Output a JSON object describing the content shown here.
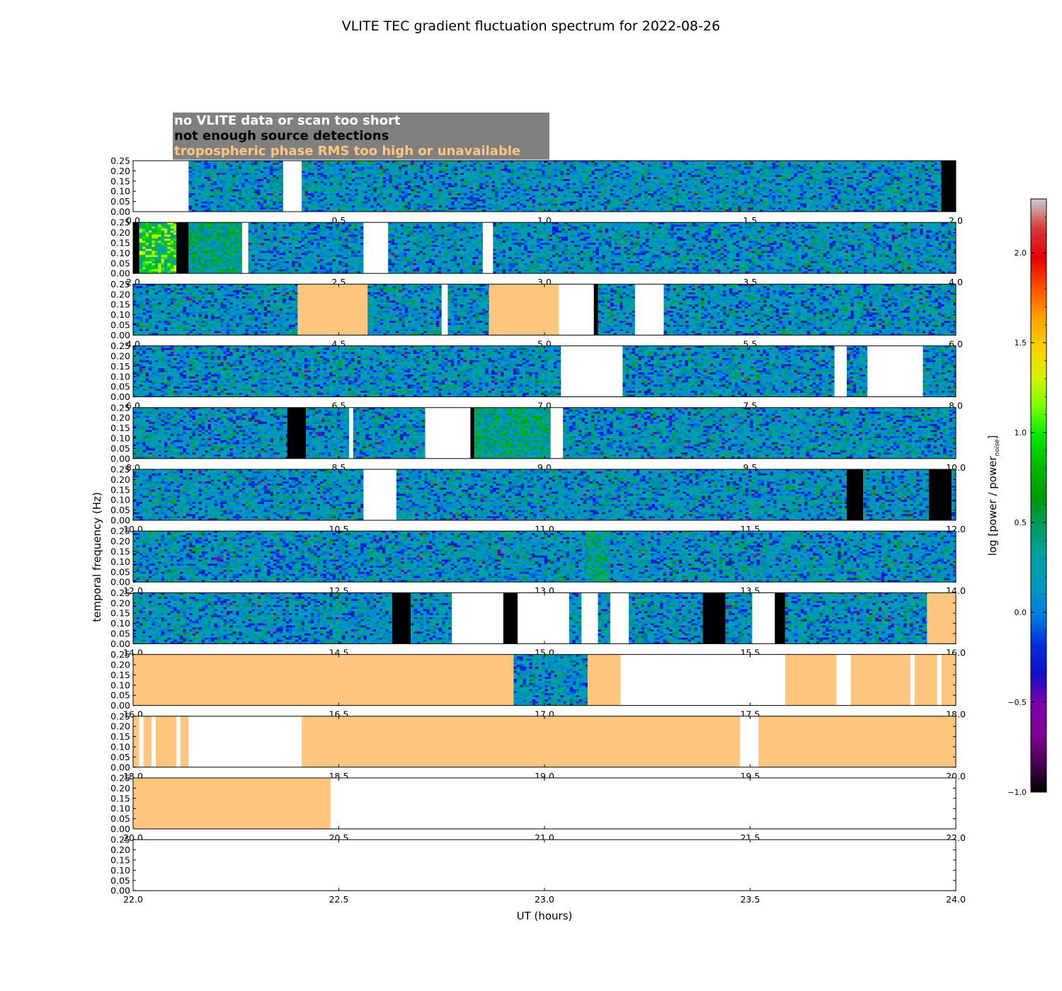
{
  "chart_data": {
    "type": "heatmap",
    "title": "VLITE TEC gradient fluctuation spectrum for 2022-08-26",
    "xlabel": "UT (hours)",
    "ylabel": "temporal frequency (Hz)",
    "colorbar_label": "log [power / power",
    "colorbar_label_sub": "noise",
    "colorbar_label_end": "]",
    "colorbar_range": [
      -1.0,
      2.3
    ],
    "colorbar_ticks": [
      "−1.0",
      "−0.5",
      "0.0",
      "0.5",
      "1.0",
      "1.5",
      "2.0"
    ],
    "colorbar_tick_values": [
      -1.0,
      -0.5,
      0.0,
      0.5,
      1.0,
      1.5,
      2.0
    ],
    "ylim": [
      0.0,
      0.25
    ],
    "y_ticks": [
      "0.00",
      "0.05",
      "0.10",
      "0.15",
      "0.20",
      "0.25"
    ],
    "y_tick_values": [
      0.0,
      0.05,
      0.1,
      0.15,
      0.2,
      0.25
    ],
    "legend": [
      {
        "label": "no VLITE data or scan too short",
        "text_color": "#ffffff",
        "category": "nodata"
      },
      {
        "label": "not enough source detections",
        "text_color": "#000000",
        "category": "nodet"
      },
      {
        "label": "tropospheric phase RMS too high or unavailable",
        "text_color": "#ffc67f",
        "category": "trop"
      }
    ],
    "legend_background": "#808080",
    "category_colors": {
      "nodata": "#ffffff",
      "nodet": "#000000",
      "trop": "#ffc67f"
    },
    "panels": [
      {
        "xlim": [
          0,
          2
        ],
        "x_ticks": [
          "0.0",
          "0.5",
          "1.0",
          "1.5",
          "2.0"
        ],
        "x_tick_values": [
          0,
          0.5,
          1.0,
          1.5,
          2.0
        ],
        "segments": [
          [
            0.0,
            0.135,
            "nodata"
          ],
          [
            0.135,
            0.365,
            "data"
          ],
          [
            0.365,
            0.41,
            "nodata"
          ],
          [
            0.41,
            1.965,
            "data"
          ],
          [
            1.965,
            2.0,
            "nodet"
          ]
        ]
      },
      {
        "xlim": [
          2,
          4
        ],
        "x_ticks": [
          "2.0",
          "2.5",
          "3.0",
          "3.5",
          "4.0"
        ],
        "x_tick_values": [
          2.0,
          2.5,
          3.0,
          3.5,
          4.0
        ],
        "segments": [
          [
            2.0,
            2.015,
            "nodet"
          ],
          [
            2.015,
            2.105,
            "data",
            "hot"
          ],
          [
            2.105,
            2.135,
            "nodet"
          ],
          [
            2.135,
            2.265,
            "data",
            "warm"
          ],
          [
            2.265,
            2.28,
            "nodata"
          ],
          [
            2.28,
            2.56,
            "data"
          ],
          [
            2.56,
            2.62,
            "nodata"
          ],
          [
            2.62,
            2.85,
            "data"
          ],
          [
            2.85,
            2.875,
            "nodata"
          ],
          [
            2.875,
            4.0,
            "data"
          ]
        ]
      },
      {
        "xlim": [
          4,
          6
        ],
        "x_ticks": [
          "4.0",
          "4.5",
          "5.0",
          "5.5",
          "6.0"
        ],
        "x_tick_values": [
          4.0,
          4.5,
          5.0,
          5.5,
          6.0
        ],
        "segments": [
          [
            4.0,
            4.4,
            "data"
          ],
          [
            4.4,
            4.57,
            "trop"
          ],
          [
            4.57,
            4.75,
            "data"
          ],
          [
            4.75,
            4.765,
            "nodata"
          ],
          [
            4.765,
            4.865,
            "data"
          ],
          [
            4.865,
            5.035,
            "trop"
          ],
          [
            5.035,
            5.12,
            "nodata"
          ],
          [
            5.12,
            5.13,
            "nodet"
          ],
          [
            5.13,
            5.22,
            "data"
          ],
          [
            5.22,
            5.29,
            "nodata"
          ],
          [
            5.29,
            6.0,
            "data"
          ]
        ]
      },
      {
        "xlim": [
          6,
          8
        ],
        "x_ticks": [
          "6.0",
          "6.5",
          "7.0",
          "7.5",
          "8.0"
        ],
        "x_tick_values": [
          6.0,
          6.5,
          7.0,
          7.5,
          8.0
        ],
        "segments": [
          [
            6.0,
            7.04,
            "data"
          ],
          [
            7.04,
            7.19,
            "nodata"
          ],
          [
            7.19,
            7.705,
            "data"
          ],
          [
            7.705,
            7.735,
            "nodata"
          ],
          [
            7.735,
            7.785,
            "data"
          ],
          [
            7.785,
            7.92,
            "nodata"
          ],
          [
            7.92,
            8.0,
            "data"
          ]
        ]
      },
      {
        "xlim": [
          8,
          10
        ],
        "x_ticks": [
          "8.0",
          "8.5",
          "9.0",
          "9.5",
          "10.0"
        ],
        "x_tick_values": [
          8.0,
          8.5,
          9.0,
          9.5,
          10.0
        ],
        "segments": [
          [
            8.0,
            8.375,
            "data"
          ],
          [
            8.375,
            8.42,
            "nodet"
          ],
          [
            8.42,
            8.525,
            "data"
          ],
          [
            8.525,
            8.535,
            "nodata"
          ],
          [
            8.535,
            8.71,
            "data"
          ],
          [
            8.71,
            8.82,
            "nodata"
          ],
          [
            8.82,
            8.83,
            "nodet"
          ],
          [
            8.83,
            9.015,
            "data",
            "warm"
          ],
          [
            9.015,
            9.045,
            "nodata"
          ],
          [
            9.045,
            10.0,
            "data"
          ]
        ]
      },
      {
        "xlim": [
          10,
          12
        ],
        "x_ticks": [
          "10.0",
          "10.5",
          "11.0",
          "11.5",
          "12.0"
        ],
        "x_tick_values": [
          10.0,
          10.5,
          11.0,
          11.5,
          12.0
        ],
        "segments": [
          [
            10.0,
            10.56,
            "data"
          ],
          [
            10.56,
            10.64,
            "nodata"
          ],
          [
            10.64,
            11.735,
            "data"
          ],
          [
            11.735,
            11.775,
            "nodet"
          ],
          [
            11.775,
            11.935,
            "data"
          ],
          [
            11.935,
            11.99,
            "nodet"
          ],
          [
            11.99,
            12.0,
            "data"
          ]
        ]
      },
      {
        "xlim": [
          12,
          14
        ],
        "x_ticks": [
          "12.0",
          "12.5",
          "13.0",
          "13.5",
          "14.0"
        ],
        "x_tick_values": [
          12.0,
          12.5,
          13.0,
          13.5,
          14.0
        ],
        "segments": [
          [
            12.0,
            13.1,
            "data"
          ],
          [
            13.1,
            13.16,
            "data",
            "warm"
          ],
          [
            13.16,
            14.0,
            "data"
          ]
        ]
      },
      {
        "xlim": [
          14,
          16
        ],
        "x_ticks": [
          "14.0",
          "14.5",
          "15.0",
          "15.5",
          "16.0"
        ],
        "x_tick_values": [
          14.0,
          14.5,
          15.0,
          15.5,
          16.0
        ],
        "segments": [
          [
            14.0,
            14.63,
            "data"
          ],
          [
            14.63,
            14.675,
            "nodet"
          ],
          [
            14.675,
            14.775,
            "data"
          ],
          [
            14.775,
            14.9,
            "nodata"
          ],
          [
            14.9,
            14.935,
            "nodet"
          ],
          [
            14.935,
            15.06,
            "nodata"
          ],
          [
            15.06,
            15.09,
            "data"
          ],
          [
            15.09,
            15.13,
            "nodata"
          ],
          [
            15.13,
            15.16,
            "data"
          ],
          [
            15.16,
            15.205,
            "nodata"
          ],
          [
            15.205,
            15.385,
            "data"
          ],
          [
            15.385,
            15.44,
            "nodet"
          ],
          [
            15.44,
            15.505,
            "data"
          ],
          [
            15.505,
            15.56,
            "nodata"
          ],
          [
            15.56,
            15.585,
            "nodet"
          ],
          [
            15.585,
            15.93,
            "data"
          ],
          [
            15.93,
            16.0,
            "trop"
          ]
        ]
      },
      {
        "xlim": [
          16,
          18
        ],
        "x_ticks": [
          "16.0",
          "16.5",
          "17.0",
          "17.5",
          "18.0"
        ],
        "x_tick_values": [
          16.0,
          16.5,
          17.0,
          17.5,
          18.0
        ],
        "segments": [
          [
            16.0,
            16.925,
            "trop"
          ],
          [
            16.925,
            17.105,
            "data"
          ],
          [
            17.105,
            17.185,
            "trop"
          ],
          [
            17.185,
            17.585,
            "nodata"
          ],
          [
            17.585,
            17.71,
            "trop"
          ],
          [
            17.71,
            17.745,
            "nodata"
          ],
          [
            17.745,
            17.89,
            "trop"
          ],
          [
            17.89,
            17.9,
            "nodata"
          ],
          [
            17.9,
            17.955,
            "trop"
          ],
          [
            17.955,
            17.965,
            "nodata"
          ],
          [
            17.965,
            18.0,
            "trop"
          ]
        ]
      },
      {
        "xlim": [
          18,
          20
        ],
        "x_ticks": [
          "18.0",
          "18.5",
          "19.0",
          "19.5",
          "20.0"
        ],
        "x_tick_values": [
          18.0,
          18.5,
          19.0,
          19.5,
          20.0
        ],
        "segments": [
          [
            18.0,
            18.015,
            "trop"
          ],
          [
            18.015,
            18.025,
            "nodata"
          ],
          [
            18.025,
            18.045,
            "trop"
          ],
          [
            18.045,
            18.055,
            "nodata"
          ],
          [
            18.055,
            18.105,
            "trop"
          ],
          [
            18.105,
            18.115,
            "nodata"
          ],
          [
            18.115,
            18.135,
            "trop"
          ],
          [
            18.135,
            18.41,
            "nodata"
          ],
          [
            18.41,
            19.475,
            "trop"
          ],
          [
            19.475,
            19.52,
            "nodata"
          ],
          [
            19.52,
            20.0,
            "trop"
          ]
        ]
      },
      {
        "xlim": [
          20,
          22
        ],
        "x_ticks": [
          "20.0",
          "20.5",
          "21.0",
          "21.5",
          "22.0"
        ],
        "x_tick_values": [
          20.0,
          20.5,
          21.0,
          21.5,
          22.0
        ],
        "segments": [
          [
            20.0,
            20.48,
            "trop"
          ],
          [
            20.48,
            22.0,
            "nodata"
          ]
        ]
      },
      {
        "xlim": [
          22,
          24
        ],
        "x_ticks": [
          "22.0",
          "22.5",
          "23.0",
          "23.5",
          "24.0"
        ],
        "x_tick_values": [
          22.0,
          22.5,
          23.0,
          23.5,
          24.0
        ],
        "segments": [
          [
            22.0,
            24.0,
            "nodata"
          ]
        ]
      }
    ]
  }
}
